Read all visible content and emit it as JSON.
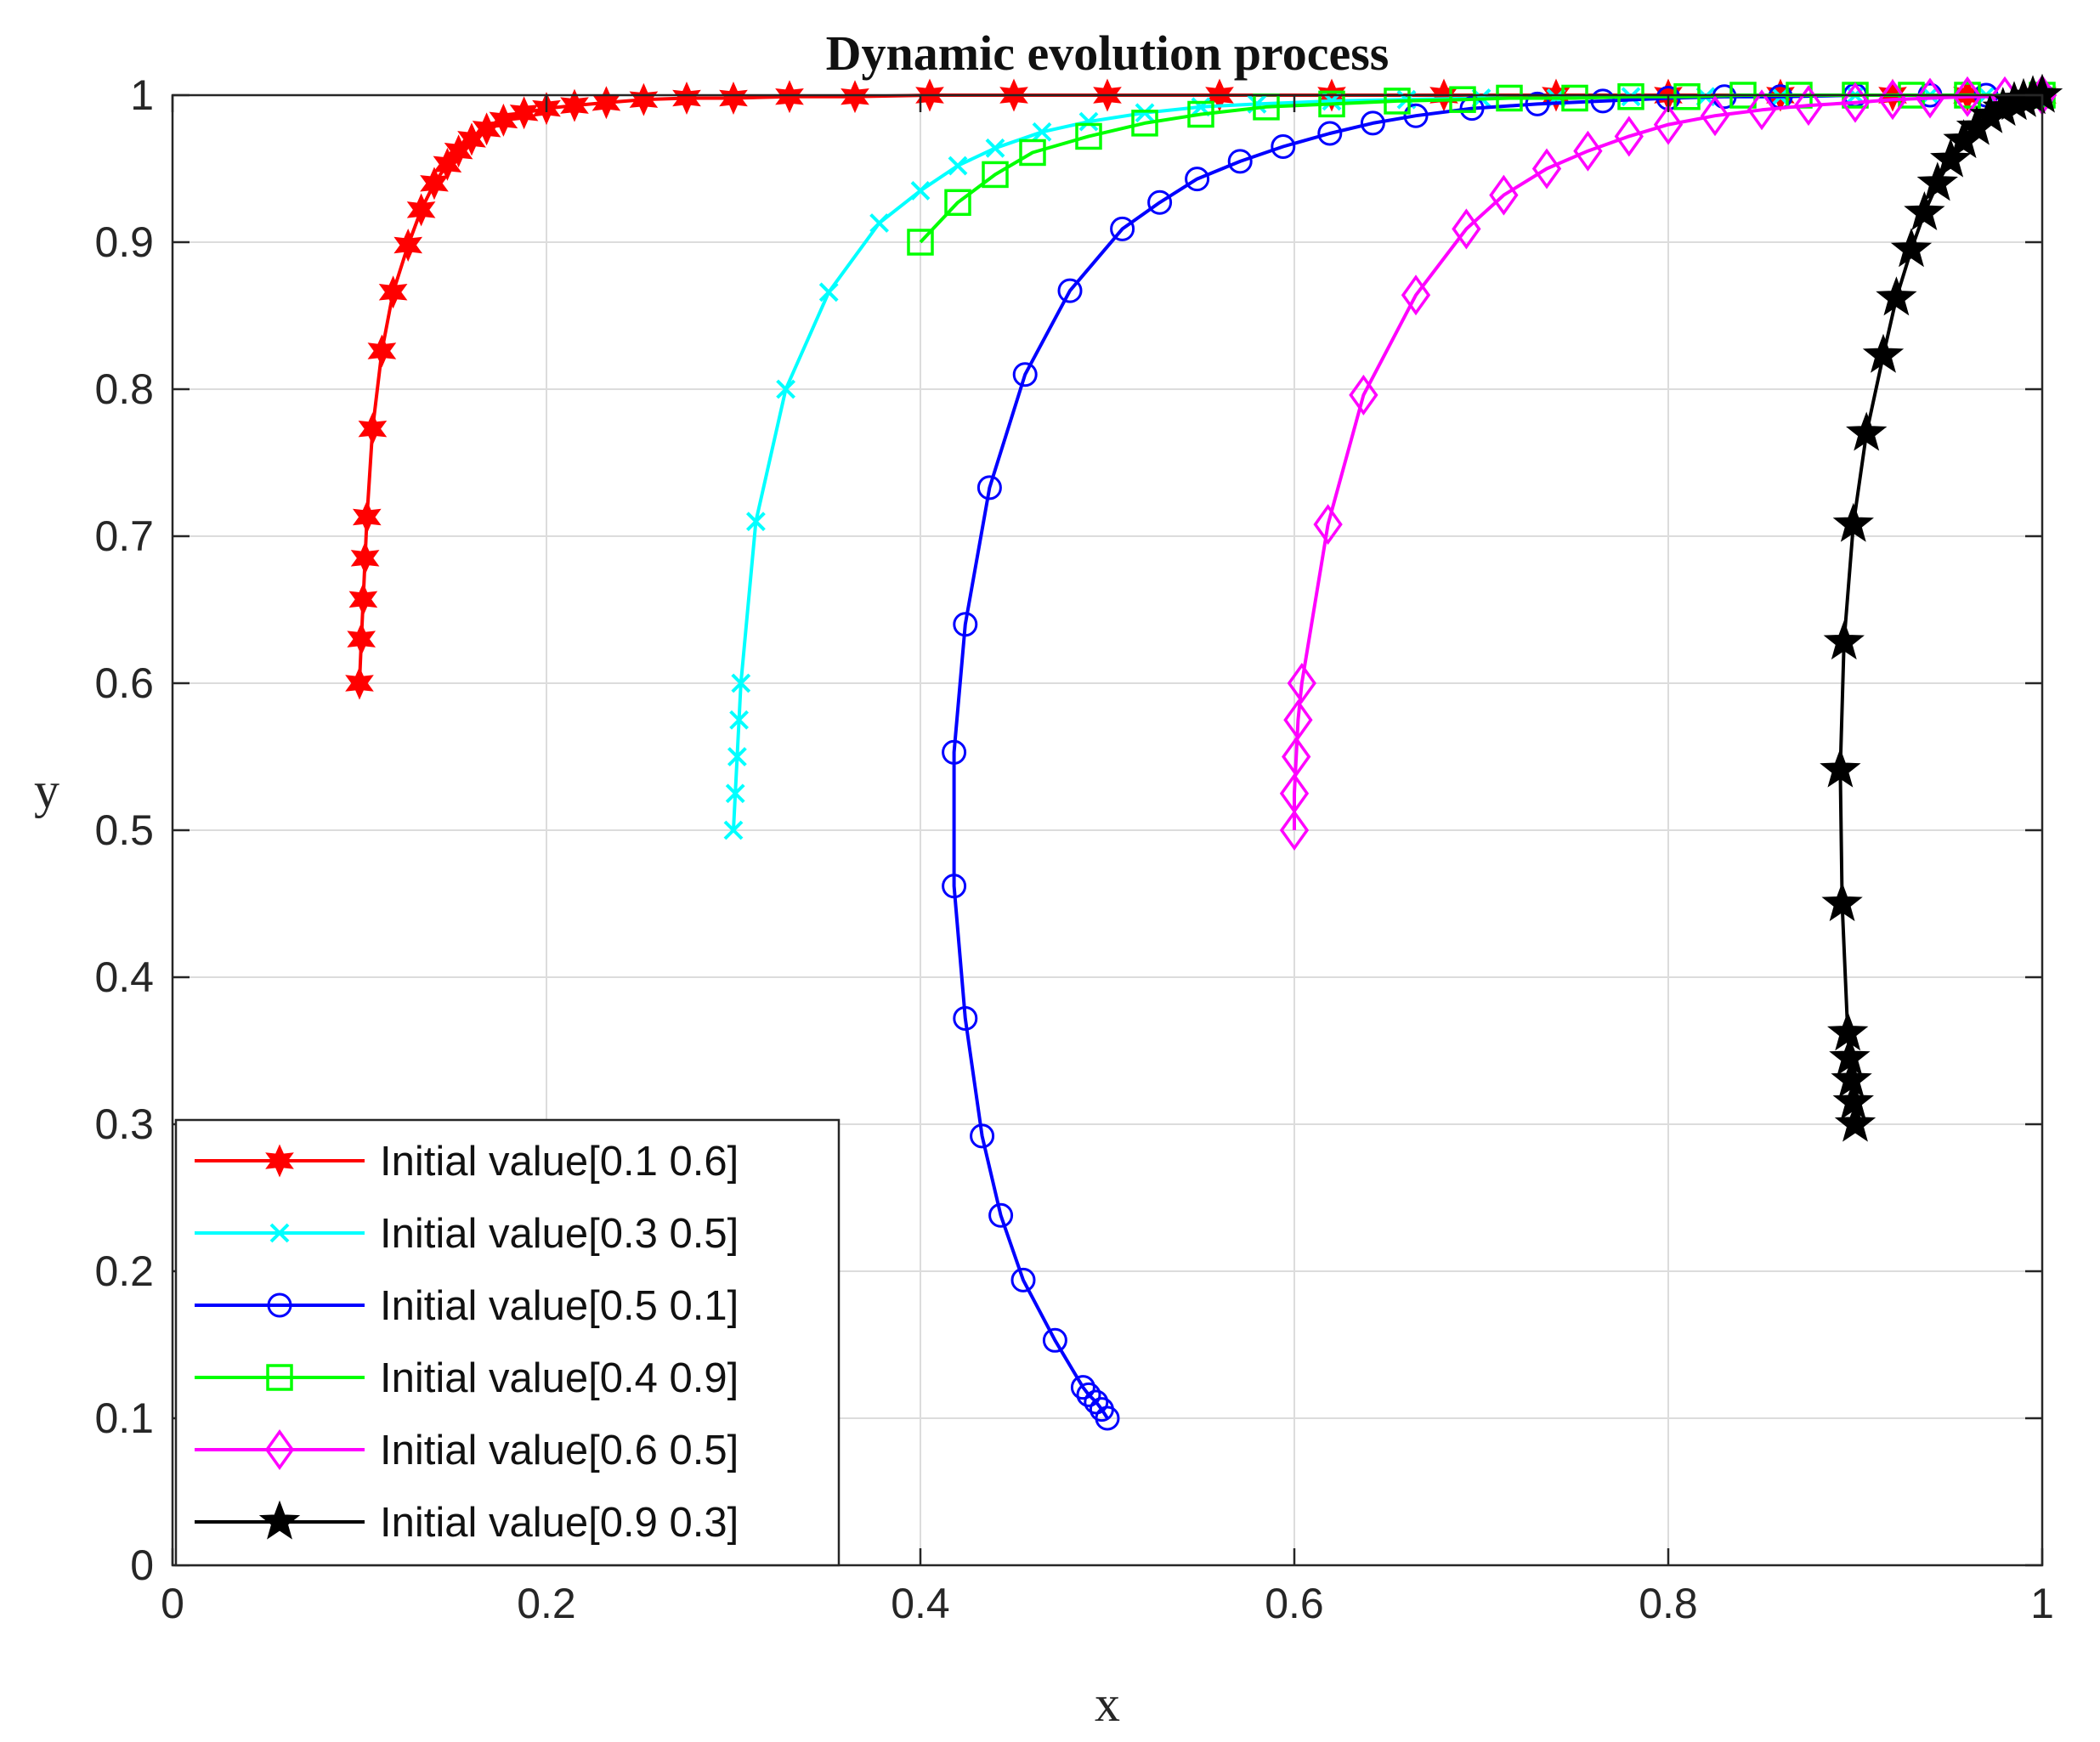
{
  "chart_data": {
    "type": "line",
    "title": "Dynamic evolution process",
    "xlabel": "x",
    "ylabel": "y",
    "xlim": [
      0,
      1
    ],
    "ylim": [
      0,
      1
    ],
    "xticks": [
      "0",
      "0.2",
      "0.4",
      "0.6",
      "0.8",
      "1"
    ],
    "yticks": [
      "0",
      "0.1",
      "0.2",
      "0.3",
      "0.4",
      "0.5",
      "0.6",
      "0.7",
      "0.8",
      "0.9",
      "1"
    ],
    "grid": true,
    "legend_position": "bottom-left",
    "series": [
      {
        "name": "Initial value[0.1 0.6]",
        "color": "#ff0000",
        "marker": "hexagram",
        "x": [
          0.1,
          0.101,
          0.102,
          0.103,
          0.104,
          0.107,
          0.112,
          0.118,
          0.126,
          0.133,
          0.14,
          0.147,
          0.153,
          0.16,
          0.168,
          0.177,
          0.188,
          0.2,
          0.215,
          0.232,
          0.252,
          0.275,
          0.3,
          0.33,
          0.365,
          0.405,
          0.45,
          0.5,
          0.56,
          0.62,
          0.68,
          0.74,
          0.8,
          0.86,
          0.92,
          0.96,
          1.0
        ],
        "y": [
          0.6,
          0.63,
          0.657,
          0.685,
          0.713,
          0.773,
          0.826,
          0.866,
          0.898,
          0.922,
          0.94,
          0.953,
          0.962,
          0.97,
          0.977,
          0.983,
          0.988,
          0.991,
          0.993,
          0.995,
          0.997,
          0.998,
          0.998,
          0.999,
          0.999,
          1.0,
          1.0,
          1.0,
          1.0,
          1.0,
          1.0,
          1.0,
          1.0,
          1.0,
          1.0,
          1.0,
          1.0
        ]
      },
      {
        "name": "Initial value[0.3 0.5]",
        "color": "#00ffff",
        "marker": "x",
        "x": [
          0.3,
          0.301,
          0.302,
          0.303,
          0.304,
          0.312,
          0.328,
          0.351,
          0.378,
          0.4,
          0.42,
          0.44,
          0.465,
          0.49,
          0.52,
          0.55,
          0.58,
          0.62,
          0.66,
          0.7,
          0.74,
          0.78,
          0.82,
          0.86,
          0.9,
          0.94,
          0.97,
          1.0
        ],
        "y": [
          0.5,
          0.525,
          0.55,
          0.575,
          0.6,
          0.71,
          0.8,
          0.866,
          0.913,
          0.935,
          0.952,
          0.964,
          0.975,
          0.982,
          0.988,
          0.992,
          0.994,
          0.996,
          0.997,
          0.998,
          0.998,
          0.999,
          0.999,
          0.999,
          1.0,
          1.0,
          1.0,
          1.0
        ]
      },
      {
        "name": "Initial value[0.5 0.1]",
        "color": "#0000ff",
        "marker": "circle",
        "x": [
          0.5,
          0.497,
          0.494,
          0.49,
          0.487,
          0.472,
          0.455,
          0.443,
          0.433,
          0.424,
          0.418,
          0.418,
          0.424,
          0.437,
          0.456,
          0.48,
          0.508,
          0.528,
          0.548,
          0.571,
          0.594,
          0.619,
          0.642,
          0.665,
          0.695,
          0.73,
          0.765,
          0.8,
          0.83,
          0.86,
          0.9,
          0.94,
          0.97,
          1.0
        ],
        "y": [
          0.1,
          0.106,
          0.111,
          0.116,
          0.121,
          0.153,
          0.194,
          0.238,
          0.292,
          0.372,
          0.462,
          0.553,
          0.64,
          0.733,
          0.81,
          0.867,
          0.909,
          0.927,
          0.943,
          0.955,
          0.965,
          0.974,
          0.981,
          0.986,
          0.991,
          0.994,
          0.996,
          0.998,
          0.999,
          0.999,
          1.0,
          1.0,
          1.0,
          1.0
        ]
      },
      {
        "name": "Initial value[0.4 0.9]",
        "color": "#00ff00",
        "marker": "square",
        "x": [
          0.4,
          0.42,
          0.44,
          0.46,
          0.49,
          0.52,
          0.55,
          0.585,
          0.62,
          0.655,
          0.69,
          0.715,
          0.75,
          0.78,
          0.81,
          0.84,
          0.87,
          0.9,
          0.93,
          0.96,
          1.0
        ],
        "y": [
          0.9,
          0.927,
          0.946,
          0.961,
          0.972,
          0.981,
          0.987,
          0.992,
          0.994,
          0.996,
          0.997,
          0.998,
          0.998,
          0.999,
          0.999,
          1.0,
          1.0,
          1.0,
          1.0,
          1.0,
          1.0
        ]
      },
      {
        "name": "Initial value[0.6 0.5]",
        "color": "#ff00ff",
        "marker": "diamond",
        "x": [
          0.6,
          0.6,
          0.601,
          0.602,
          0.604,
          0.618,
          0.637,
          0.665,
          0.692,
          0.712,
          0.735,
          0.757,
          0.779,
          0.8,
          0.825,
          0.85,
          0.875,
          0.9,
          0.92,
          0.94,
          0.96,
          0.98,
          1.0
        ],
        "y": [
          0.5,
          0.525,
          0.55,
          0.575,
          0.6,
          0.708,
          0.796,
          0.864,
          0.909,
          0.932,
          0.95,
          0.962,
          0.972,
          0.98,
          0.986,
          0.99,
          0.993,
          0.995,
          0.997,
          0.998,
          0.999,
          0.999,
          1.0
        ]
      },
      {
        "name": "Initial value[0.9 0.3]",
        "color": "#000000",
        "marker": "pentagram",
        "x": [
          0.9,
          0.899,
          0.898,
          0.897,
          0.896,
          0.893,
          0.892,
          0.894,
          0.899,
          0.906,
          0.915,
          0.922,
          0.93,
          0.937,
          0.944,
          0.951,
          0.958,
          0.965,
          0.972,
          0.979,
          0.985,
          0.99,
          0.995,
          1.0
        ],
        "y": [
          0.3,
          0.315,
          0.33,
          0.345,
          0.362,
          0.45,
          0.541,
          0.628,
          0.708,
          0.77,
          0.823,
          0.862,
          0.895,
          0.92,
          0.94,
          0.956,
          0.969,
          0.978,
          0.986,
          0.991,
          0.995,
          0.997,
          0.999,
          1.0
        ]
      }
    ]
  }
}
